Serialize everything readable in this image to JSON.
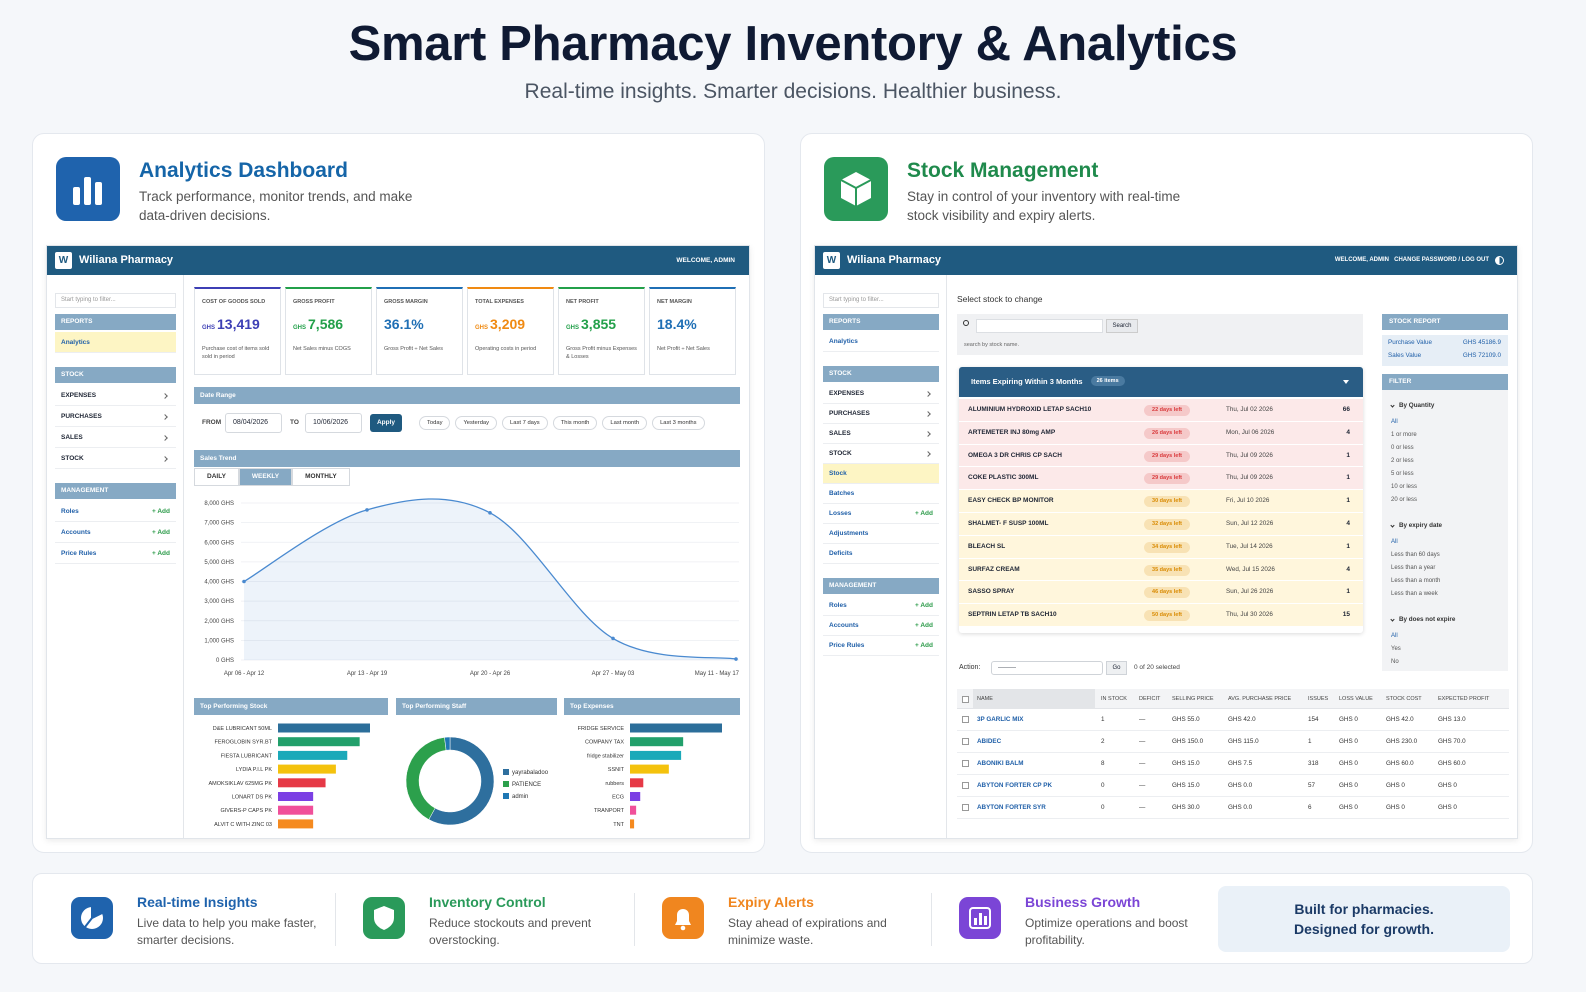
{
  "header": {
    "title": "Smart Pharmacy Inventory & Analytics",
    "subtitle": "Real-time insights. Smarter decisions. Healthier business."
  },
  "analytics_panel": {
    "title": "Analytics Dashboard",
    "description": "Track performance, monitor trends, and make data-driven decisions.",
    "app": {
      "logo": "W",
      "brand": "Wiliana Pharmacy",
      "welcome": "WELCOME, ADMIN"
    },
    "sidebar": {
      "filter_placeholder": "Start typing to filter...",
      "sections": [
        {
          "heading": "REPORTS",
          "items": [
            {
              "label": "Analytics",
              "active": true
            }
          ]
        },
        {
          "heading": "STOCK",
          "items": [
            {
              "label": "EXPENSES"
            },
            {
              "label": "PURCHASES"
            },
            {
              "label": "SALES"
            },
            {
              "label": "STOCK"
            }
          ]
        },
        {
          "heading": "MANAGEMENT",
          "items": [
            {
              "label": "Roles",
              "add": "+ Add"
            },
            {
              "label": "Accounts",
              "add": "+ Add"
            },
            {
              "label": "Price Rules",
              "add": "+ Add"
            }
          ]
        }
      ]
    },
    "kpis": [
      {
        "label": "COST OF GOODS SOLD",
        "currency": "GHS",
        "value": "13,419",
        "note": "Purchase cost of items sold sold in period",
        "color": "#3d3fb5"
      },
      {
        "label": "GROSS PROFIT",
        "currency": "GHS",
        "value": "7,586",
        "note": "Net Sales minus COGS",
        "color": "#23a04a"
      },
      {
        "label": "GROSS MARGIN",
        "value": "36.1%",
        "note": "Gross Profit ÷ Net Sales",
        "color": "#1f6fb5"
      },
      {
        "label": "TOTAL EXPENSES",
        "currency": "GHS",
        "value": "3,209",
        "note": "Operating costs in period",
        "color": "#f08a12"
      },
      {
        "label": "NET PROFIT",
        "currency": "GHS",
        "value": "3,855",
        "note": "Gross Profit minus Expenses & Losses",
        "color": "#23a04a"
      },
      {
        "label": "NET MARGIN",
        "value": "18.4%",
        "note": "Net Profit ÷ Net Sales",
        "color": "#1f6fb5"
      }
    ],
    "date_range": {
      "heading": "Date Range",
      "from_label": "FROM",
      "from": "08/04/2026",
      "to_label": "TO",
      "to": "10/06/2026",
      "apply": "Apply",
      "presets": [
        "Today",
        "Yesterday",
        "Last 7 days",
        "This month",
        "Last month",
        "Last 3 months"
      ]
    },
    "trend_tabs": [
      "DAILY",
      "WEEKLY",
      "MONTHLY"
    ],
    "active_tab": 1
  },
  "chart_data": [
    {
      "type": "line",
      "title": "Sales Trend",
      "categories": [
        "Apr 06 - Apr 12",
        "Apr 13 - Apr 19",
        "Apr 20 - Apr 26",
        "Apr 27 - May 03",
        "May 11 - May 17"
      ],
      "values": [
        4000,
        7650,
        7500,
        1100,
        50
      ],
      "color": "#4a8ad0",
      "ylim": [
        0,
        8000
      ],
      "yticks": [
        {
          "value": 0,
          "label": "0 GHS"
        },
        {
          "value": 1000,
          "label": "1,000 GHS"
        },
        {
          "value": 2000,
          "label": "2,000 GHS"
        },
        {
          "value": 3000,
          "label": "3,000 GHS"
        },
        {
          "value": 4000,
          "label": "4,000 GHS"
        },
        {
          "value": 5000,
          "label": "5,000 GHS"
        },
        {
          "value": 6000,
          "label": "6,000 GHS"
        },
        {
          "value": 7000,
          "label": "7,000 GHS"
        },
        {
          "value": 8000,
          "label": "8,000 GHS"
        }
      ],
      "grid": true
    },
    {
      "type": "bar",
      "orientation": "horizontal",
      "title": "Top Performing Stock",
      "categories": [
        "D&E LUBRICANT 50ML",
        "FEROGLOBIN SYR.BT",
        "FIESTA LUBRICANT",
        "LYDIA P.I.L PK",
        "AMOKSIKLAV 625MG PK",
        "LONART DS PK",
        "GIVERS-P CAPS PK",
        "ALVIT C WITH ZINC 03"
      ],
      "values": [
        89,
        79,
        67,
        56,
        46,
        34,
        34,
        34
      ],
      "colors": [
        "#2c6e9a",
        "#22a06b",
        "#1aa9b9",
        "#f4c20d",
        "#e63946",
        "#7b3fe4",
        "#f0509a",
        "#f58a1f"
      ]
    },
    {
      "type": "donut",
      "title": "Top Performing Staff",
      "categories": [
        "yayrabaladoo",
        "PATIENCE",
        "admin"
      ],
      "values": [
        58,
        40,
        2
      ],
      "colors": [
        "#2e6f9e",
        "#2ca04c",
        "#1f77b4"
      ]
    },
    {
      "type": "bar",
      "orientation": "horizontal",
      "title": "Top Expenses",
      "categories": [
        "FRIDGE SERVICE",
        "COMPANY TAX",
        "fridge stabilizer",
        "SSNIT",
        "rubbers",
        "ECG",
        "TRANPORT",
        "TNT"
      ],
      "values": [
        90,
        52,
        50,
        38,
        13,
        10,
        6,
        4
      ],
      "colors": [
        "#2c6e9a",
        "#22a06b",
        "#1aa9b9",
        "#f4c20d",
        "#e63946",
        "#7b3fe4",
        "#f0509a",
        "#f58a1f"
      ]
    }
  ],
  "stock_panel": {
    "title": "Stock Management",
    "description": "Stay in control of your inventory with real-time stock visibility and expiry alerts.",
    "app": {
      "logo": "W",
      "brand": "Wiliana Pharmacy",
      "welcome": "WELCOME, ADMIN",
      "account": "CHANGE PASSWORD / LOG OUT"
    },
    "sidebar": {
      "filter_placeholder": "Start typing to filter...",
      "sections": [
        {
          "heading": "REPORTS",
          "items": [
            {
              "label": "Analytics"
            }
          ]
        },
        {
          "heading": "STOCK",
          "items": [
            {
              "label": "EXPENSES"
            },
            {
              "label": "PURCHASES"
            },
            {
              "label": "SALES"
            },
            {
              "label": "STOCK"
            },
            {
              "label": "Stock",
              "active": true
            },
            {
              "label": "Batches"
            },
            {
              "label": "Losses",
              "add": "+ Add"
            },
            {
              "label": "Adjustments"
            },
            {
              "label": "Deficits"
            }
          ]
        },
        {
          "heading": "MANAGEMENT",
          "items": [
            {
              "label": "Roles",
              "add": "+ Add"
            },
            {
              "label": "Accounts",
              "add": "+ Add"
            },
            {
              "label": "Price Rules",
              "add": "+ Add"
            }
          ]
        }
      ]
    },
    "page_title": "Select stock to change",
    "search": {
      "button": "Search",
      "hint": "search by stock name."
    },
    "expiring": {
      "title": "Items Expiring Within 3 Months",
      "badge": "26 items",
      "rows": [
        {
          "name": "ALUMINIUM HYDROXID LETAP SACH10",
          "days": "22 days left",
          "date": "Thu, Jul 02 2026",
          "qty": "66",
          "color": "#fce9e9",
          "badge_color": "#d9383a"
        },
        {
          "name": "ARTEMETER INJ 80mg AMP",
          "days": "26 days left",
          "date": "Mon, Jul 06 2026",
          "qty": "4",
          "color": "#fce9e9",
          "badge_color": "#d9383a"
        },
        {
          "name": "OMEGA 3 DR CHRIS CP SACH",
          "days": "29 days left",
          "date": "Thu, Jul 09 2026",
          "qty": "1",
          "color": "#fce9e9",
          "badge_color": "#d9383a"
        },
        {
          "name": "COKE PLASTIC 300ML",
          "days": "29 days left",
          "date": "Thu, Jul 09 2026",
          "qty": "1",
          "color": "#fce9e9",
          "badge_color": "#d9383a"
        },
        {
          "name": "EASY CHECK BP MONITOR",
          "days": "30 days left",
          "date": "Fri, Jul 10 2026",
          "qty": "1",
          "color": "#fff6dc",
          "badge_color": "#d98a00"
        },
        {
          "name": "SHALMET- F SUSP 100ML",
          "days": "32 days left",
          "date": "Sun, Jul 12 2026",
          "qty": "4",
          "color": "#fff6dc",
          "badge_color": "#d98a00"
        },
        {
          "name": "BLEACH SL",
          "days": "34 days left",
          "date": "Tue, Jul 14 2026",
          "qty": "1",
          "color": "#fff6dc",
          "badge_color": "#d98a00"
        },
        {
          "name": "SURFAZ CREAM",
          "days": "35 days left",
          "date": "Wed, Jul 15 2026",
          "qty": "4",
          "color": "#fff6dc",
          "badge_color": "#d98a00"
        },
        {
          "name": "SASSO SPRAY",
          "days": "46 days left",
          "date": "Sun, Jul 26 2026",
          "qty": "1",
          "color": "#fff6dc",
          "badge_color": "#d98a00"
        },
        {
          "name": "SEPTRIN LETAP TB SACH10",
          "days": "50 days left",
          "date": "Thu, Jul 30 2026",
          "qty": "15",
          "color": "#fff6dc",
          "badge_color": "#d98a00"
        }
      ]
    },
    "actions": {
      "label": "Action:",
      "select": "---------",
      "go": "Go",
      "selected": "0 of 20 selected"
    },
    "table": {
      "columns": [
        "NAME",
        "IN STOCK",
        "DEFICIT",
        "SELLING PRICE",
        "AVG. PURCHASE PRICE",
        "ISSUES",
        "LOSS VALUE",
        "STOCK COST",
        "EXPECTED PROFIT"
      ],
      "rows": [
        [
          "3P GARLIC MIX",
          "1",
          "—",
          "GHS 55.0",
          "GHS 42.0",
          "154",
          "GHS 0",
          "GHS 42.0",
          "GHS 13.0"
        ],
        [
          "ABIDEC",
          "2",
          "—",
          "GHS 150.0",
          "GHS 115.0",
          "1",
          "GHS 0",
          "GHS 230.0",
          "GHS 70.0"
        ],
        [
          "ABONIKI BALM",
          "8",
          "—",
          "GHS 15.0",
          "GHS 7.5",
          "318",
          "GHS 0",
          "GHS 60.0",
          "GHS 60.0"
        ],
        [
          "ABYTON FORTER CP PK",
          "0",
          "—",
          "GHS 15.0",
          "GHS 0.0",
          "57",
          "GHS 0",
          "GHS 0",
          "GHS 0"
        ],
        [
          "ABYTON FORTER SYR",
          "0",
          "—",
          "GHS 30.0",
          "GHS 0.0",
          "6",
          "GHS 0",
          "GHS 0",
          "GHS 0"
        ]
      ]
    },
    "stock_report": {
      "heading": "STOCK REPORT",
      "rows": [
        [
          "Purchase Value",
          "GHS 45186.9"
        ],
        [
          "Sales Value",
          "GHS 72109.0"
        ]
      ]
    },
    "filter": {
      "heading": "FILTER",
      "groups": [
        {
          "title": "By Quantity",
          "options": [
            "All",
            "1 or more",
            "0 or less",
            "2 or less",
            "5 or less",
            "10 or less",
            "20 or less"
          ]
        },
        {
          "title": "By expiry date",
          "options": [
            "All",
            "Less than 60 days",
            "Less than a year",
            "Less than a month",
            "Less than a week"
          ]
        },
        {
          "title": "By does not expire",
          "options": [
            "All",
            "Yes",
            "No"
          ]
        }
      ]
    }
  },
  "features": [
    {
      "title": "Real-time Insights",
      "description": "Live data to help you make faster, smarter decisions.",
      "color": "#1f63ad"
    },
    {
      "title": "Inventory Control",
      "description": "Reduce stockouts and prevent overstocking.",
      "color": "#2a9a5a"
    },
    {
      "title": "Expiry Alerts",
      "description": "Stay ahead of expirations and minimize waste.",
      "color": "#f0861f"
    },
    {
      "title": "Business Growth",
      "description": "Optimize operations and boost profitability.",
      "color": "#7b45d6"
    }
  ],
  "tagline": [
    "Built for pharmacies.",
    "Designed for growth."
  ]
}
